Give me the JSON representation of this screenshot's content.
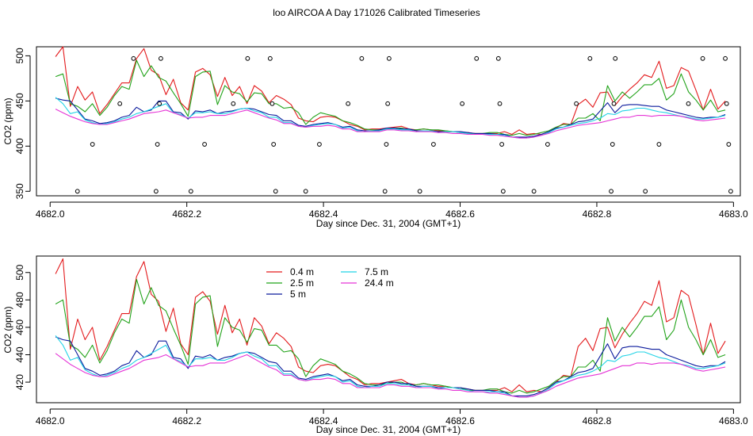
{
  "title": "loo AIRCOA A  Day 171026  Calibrated Timeseries",
  "chart_data": [
    {
      "type": "scatter",
      "xlabel": "Day since Dec. 31, 2004 (GMT+1)",
      "ylabel": "CO2 (ppm)",
      "xlim": [
        4681.98,
        4683.01
      ],
      "ylim": [
        345,
        510
      ],
      "x_ticks": [
        4682.0,
        4682.2,
        4682.4,
        4682.6,
        4682.8,
        4683.0
      ],
      "x_tick_labels": [
        "4682.0",
        "4682.2",
        "4682.4",
        "4682.6",
        "4682.8",
        "4683.0"
      ],
      "y_ticks": [
        350,
        400,
        450,
        500
      ],
      "y_tick_labels": [
        "350",
        "400",
        "450",
        "500"
      ],
      "calibration_points": [
        {
          "x": 4682.04,
          "y": 350
        },
        {
          "x": 4682.062,
          "y": 402
        },
        {
          "x": 4682.102,
          "y": 447
        },
        {
          "x": 4682.122,
          "y": 497
        },
        {
          "x": 4682.155,
          "y": 350
        },
        {
          "x": 4682.157,
          "y": 402
        },
        {
          "x": 4682.16,
          "y": 447
        },
        {
          "x": 4682.162,
          "y": 497
        },
        {
          "x": 4682.206,
          "y": 350
        },
        {
          "x": 4682.226,
          "y": 402
        },
        {
          "x": 4682.268,
          "y": 447
        },
        {
          "x": 4682.289,
          "y": 497
        },
        {
          "x": 4682.322,
          "y": 497
        },
        {
          "x": 4682.325,
          "y": 447
        },
        {
          "x": 4682.327,
          "y": 402
        },
        {
          "x": 4682.33,
          "y": 350
        },
        {
          "x": 4682.374,
          "y": 350
        },
        {
          "x": 4682.394,
          "y": 402
        },
        {
          "x": 4682.436,
          "y": 447
        },
        {
          "x": 4682.456,
          "y": 497
        },
        {
          "x": 4682.49,
          "y": 350
        },
        {
          "x": 4682.492,
          "y": 402
        },
        {
          "x": 4682.494,
          "y": 447
        },
        {
          "x": 4682.496,
          "y": 497
        },
        {
          "x": 4682.541,
          "y": 350
        },
        {
          "x": 4682.561,
          "y": 402
        },
        {
          "x": 4682.603,
          "y": 447
        },
        {
          "x": 4682.624,
          "y": 497
        },
        {
          "x": 4682.656,
          "y": 497
        },
        {
          "x": 4682.658,
          "y": 447
        },
        {
          "x": 4682.661,
          "y": 402
        },
        {
          "x": 4682.663,
          "y": 350
        },
        {
          "x": 4682.708,
          "y": 350
        },
        {
          "x": 4682.728,
          "y": 402
        },
        {
          "x": 4682.77,
          "y": 447
        },
        {
          "x": 4682.79,
          "y": 497
        },
        {
          "x": 4682.821,
          "y": 350
        },
        {
          "x": 4682.823,
          "y": 402
        },
        {
          "x": 4682.825,
          "y": 447
        },
        {
          "x": 4682.827,
          "y": 497
        },
        {
          "x": 4682.871,
          "y": 350
        },
        {
          "x": 4682.891,
          "y": 402
        },
        {
          "x": 4682.934,
          "y": 447
        },
        {
          "x": 4682.955,
          "y": 497
        },
        {
          "x": 4682.988,
          "y": 497
        },
        {
          "x": 4682.99,
          "y": 447
        },
        {
          "x": 4682.993,
          "y": 402
        },
        {
          "x": 4682.996,
          "y": 350
        }
      ]
    },
    {
      "type": "line",
      "xlabel": "Day since Dec. 31, 2004 (GMT+1)",
      "ylabel": "CO2 (ppm)",
      "xlim": [
        4681.98,
        4683.01
      ],
      "ylim": [
        405,
        512
      ],
      "x_ticks": [
        4682.0,
        4682.2,
        4682.4,
        4682.6,
        4682.8,
        4683.0
      ],
      "x_tick_labels": [
        "4682.0",
        "4682.2",
        "4682.4",
        "4682.6",
        "4682.8",
        "4683.0"
      ],
      "y_ticks": [
        420,
        440,
        460,
        480,
        500
      ],
      "y_tick_labels": [
        "420",
        "440",
        "460",
        "480",
        "500"
      ],
      "legend": {
        "position": "top-center",
        "columns": 2,
        "order": [
          "0.4 m",
          "2.5 m",
          "5 m",
          "7.5 m",
          "24.4 m"
        ]
      }
    }
  ],
  "series": [
    {
      "name": "0.4 m",
      "color": "#e31a1c",
      "y": [
        499,
        510,
        444,
        466,
        451,
        460,
        436,
        446,
        458,
        470,
        470,
        497,
        508,
        484,
        479,
        457,
        474,
        448,
        440,
        482,
        486,
        479,
        455,
        476,
        456,
        466,
        447,
        467,
        461,
        448,
        456,
        452,
        446,
        431,
        428,
        427,
        432,
        433,
        432,
        428,
        424,
        422,
        418,
        419,
        419,
        420,
        421,
        422,
        419,
        418,
        419,
        418,
        417,
        417,
        416,
        415,
        415,
        414,
        414,
        414,
        414,
        416,
        413,
        418,
        413,
        414,
        413,
        416,
        420,
        425,
        424,
        446,
        452,
        443,
        459,
        460,
        445,
        455,
        463,
        470,
        479,
        476,
        494,
        464,
        467,
        487,
        483,
        462,
        440,
        463,
        441,
        450
      ]
    },
    {
      "name": "2.5 m",
      "color": "#22a31a",
      "y": [
        477,
        480,
        447,
        444,
        438,
        447,
        434,
        443,
        456,
        466,
        463,
        495,
        477,
        489,
        476,
        472,
        459,
        447,
        433,
        477,
        482,
        483,
        446,
        467,
        460,
        458,
        449,
        459,
        458,
        447,
        447,
        442,
        443,
        437,
        424,
        432,
        437,
        435,
        433,
        428,
        426,
        423,
        419,
        418,
        418,
        419,
        420,
        420,
        418,
        418,
        419,
        418,
        418,
        417,
        416,
        416,
        414,
        414,
        414,
        415,
        415,
        413,
        412,
        414,
        412,
        413,
        415,
        417,
        421,
        424,
        424,
        431,
        431,
        436,
        428,
        467,
        450,
        460,
        453,
        460,
        468,
        468,
        475,
        451,
        458,
        480,
        460,
        451,
        440,
        451,
        438,
        440
      ]
    },
    {
      "name": "5 m",
      "color": "#0b1a9c",
      "y": [
        453,
        451,
        450,
        440,
        430,
        428,
        425,
        426,
        428,
        432,
        434,
        443,
        438,
        440,
        450,
        450,
        438,
        437,
        430,
        439,
        438,
        440,
        436,
        438,
        439,
        441,
        442,
        441,
        438,
        435,
        434,
        428,
        428,
        423,
        422,
        424,
        425,
        426,
        424,
        421,
        422,
        418,
        417,
        417,
        418,
        420,
        420,
        419,
        419,
        417,
        417,
        417,
        416,
        416,
        416,
        416,
        415,
        414,
        414,
        414,
        413,
        413,
        410,
        410,
        410,
        411,
        413,
        416,
        420,
        421,
        424,
        427,
        428,
        430,
        439,
        448,
        437,
        445,
        446,
        446,
        445,
        444,
        444,
        440,
        438,
        436,
        434,
        432,
        431,
        432,
        432,
        435
      ]
    },
    {
      "name": "7.5 m",
      "color": "#22d3e6",
      "y": [
        454,
        447,
        436,
        438,
        429,
        426,
        424,
        425,
        427,
        430,
        432,
        436,
        438,
        441,
        444,
        447,
        437,
        435,
        431,
        437,
        437,
        438,
        436,
        436,
        438,
        441,
        442,
        439,
        437,
        432,
        432,
        426,
        426,
        422,
        421,
        423,
        424,
        425,
        424,
        420,
        421,
        417,
        416,
        417,
        417,
        419,
        419,
        418,
        418,
        416,
        417,
        417,
        415,
        416,
        416,
        415,
        414,
        413,
        413,
        413,
        413,
        412,
        410,
        409,
        409,
        410,
        412,
        415,
        419,
        421,
        423,
        425,
        426,
        428,
        431,
        436,
        435,
        439,
        440,
        442,
        442,
        440,
        438,
        437,
        435,
        433,
        432,
        430,
        430,
        431,
        432,
        434
      ]
    },
    {
      "name": "24.4 m",
      "color": "#e534d6",
      "y": [
        441,
        437,
        433,
        430,
        427,
        425,
        424,
        424,
        426,
        428,
        430,
        433,
        436,
        437,
        438,
        440,
        437,
        434,
        431,
        432,
        432,
        434,
        434,
        434,
        436,
        438,
        440,
        437,
        434,
        431,
        429,
        425,
        425,
        422,
        421,
        422,
        422,
        423,
        422,
        419,
        419,
        416,
        416,
        416,
        416,
        418,
        418,
        417,
        417,
        416,
        416,
        416,
        415,
        415,
        414,
        414,
        413,
        413,
        413,
        412,
        412,
        411,
        410,
        409,
        409,
        410,
        412,
        414,
        417,
        419,
        421,
        423,
        424,
        425,
        426,
        428,
        430,
        432,
        432,
        434,
        434,
        433,
        434,
        434,
        434,
        433,
        431,
        429,
        428,
        429,
        430,
        431
      ]
    }
  ],
  "series_x_start": 4682.008,
  "series_x_step": 0.01077
}
